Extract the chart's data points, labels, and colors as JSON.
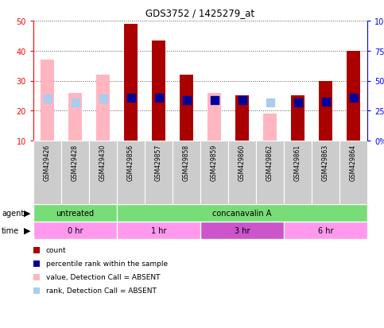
{
  "title": "GDS3752 / 1425279_at",
  "samples": [
    "GSM429426",
    "GSM429428",
    "GSM429430",
    "GSM429856",
    "GSM429857",
    "GSM429858",
    "GSM429859",
    "GSM429860",
    "GSM429862",
    "GSM429861",
    "GSM429863",
    "GSM429864"
  ],
  "count_values": [
    null,
    null,
    null,
    49.0,
    43.5,
    32.0,
    null,
    25.0,
    null,
    25.0,
    30.0,
    40.0
  ],
  "absent_values": [
    37.0,
    26.0,
    32.0,
    null,
    null,
    null,
    26.0,
    null,
    19.0,
    null,
    null,
    null
  ],
  "percentile_rank": [
    null,
    null,
    null,
    36.0,
    36.0,
    34.0,
    34.0,
    34.0,
    null,
    32.0,
    32.5,
    35.5
  ],
  "absent_rank": [
    35.0,
    32.0,
    35.0,
    null,
    null,
    null,
    34.0,
    null,
    31.5,
    null,
    null,
    null
  ],
  "count_color": "#AA0000",
  "absent_bar_color": "#FFB6C1",
  "percentile_color": "#000099",
  "absent_rank_color": "#AACCEE",
  "ylim_left": [
    10,
    50
  ],
  "ylim_right": [
    0,
    100
  ],
  "yticks_left": [
    10,
    20,
    30,
    40,
    50
  ],
  "yticks_right": [
    0,
    25,
    50,
    75,
    100
  ],
  "ytick_labels_right": [
    "0%",
    "25%",
    "50%",
    "75%",
    "100%"
  ],
  "agent_untreated_color": "#77DD77",
  "agent_conc_color": "#77DD77",
  "time_0hr_color": "#FF99EE",
  "time_1hr_color": "#FF99EE",
  "time_3hr_color": "#CC55CC",
  "time_6hr_color": "#FF99EE",
  "legend_items": [
    {
      "label": "count",
      "color": "#AA0000"
    },
    {
      "label": "percentile rank within the sample",
      "color": "#000099"
    },
    {
      "label": "value, Detection Call = ABSENT",
      "color": "#FFB6C1"
    },
    {
      "label": "rank, Detection Call = ABSENT",
      "color": "#AACCEE"
    }
  ],
  "bar_width": 0.5,
  "dot_size": 45,
  "background_color": "#ffffff"
}
